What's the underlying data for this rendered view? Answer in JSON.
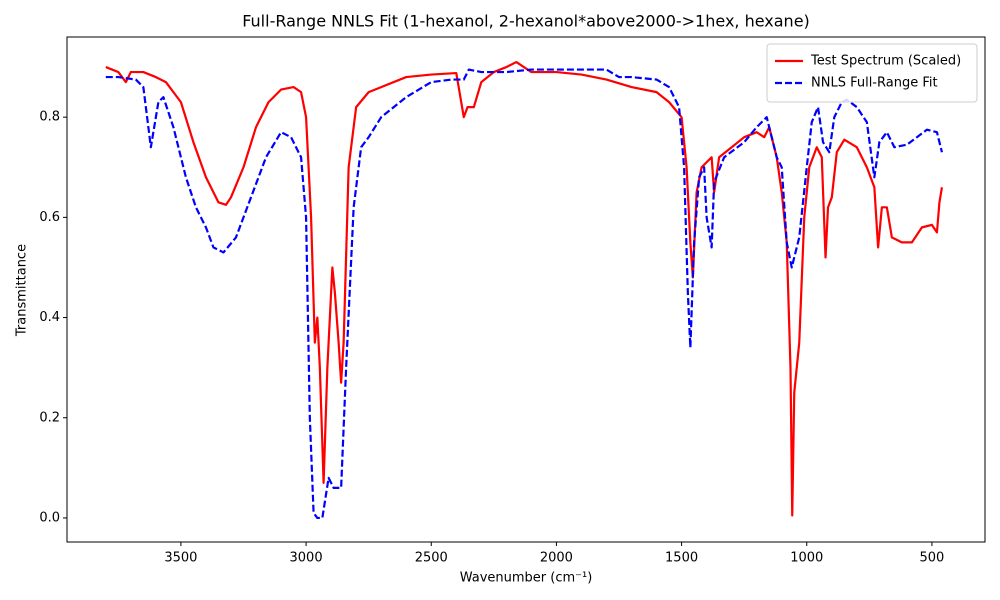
{
  "chart_data": {
    "type": "line",
    "title": "Full-Range NNLS Fit (1-hexanol, 2-hexanol*above2000->1hex, hexane)",
    "xlabel": "Wavenumber (cm⁻¹)",
    "ylabel": "Transmittance",
    "xlim": [
      3955,
      288
    ],
    "ylim": [
      -0.048,
      0.96
    ],
    "xticks": [
      3500,
      3000,
      2500,
      2000,
      1500,
      1000,
      500
    ],
    "yticks": [
      {
        "value": 0,
        "label": "0.0"
      },
      0.2,
      0.4,
      0.6,
      0.8
    ],
    "grid": false,
    "legend": "upper right",
    "series": [
      {
        "name": "Test Spectrum (Scaled)",
        "color": "#ff0000",
        "dash": "solid",
        "x": [
          3800,
          3750,
          3720,
          3700,
          3650,
          3600,
          3560,
          3500,
          3450,
          3400,
          3350,
          3320,
          3300,
          3250,
          3200,
          3150,
          3100,
          3050,
          3020,
          3000,
          2980,
          2965,
          2955,
          2945,
          2930,
          2915,
          2895,
          2885,
          2870,
          2860,
          2850,
          2830,
          2800,
          2750,
          2700,
          2600,
          2500,
          2400,
          2370,
          2355,
          2330,
          2300,
          2250,
          2200,
          2160,
          2100,
          2000,
          1900,
          1800,
          1700,
          1600,
          1550,
          1500,
          1480,
          1465,
          1455,
          1440,
          1420,
          1380,
          1370,
          1350,
          1300,
          1250,
          1200,
          1170,
          1150,
          1120,
          1100,
          1080,
          1065,
          1058,
          1050,
          1030,
          1010,
          990,
          960,
          940,
          925,
          915,
          900,
          880,
          850,
          800,
          760,
          730,
          715,
          700,
          680,
          660,
          620,
          580,
          540,
          500,
          480,
          470,
          460
        ],
        "values": [
          0.9,
          0.89,
          0.87,
          0.89,
          0.89,
          0.88,
          0.87,
          0.83,
          0.75,
          0.68,
          0.63,
          0.625,
          0.64,
          0.7,
          0.78,
          0.83,
          0.855,
          0.86,
          0.85,
          0.8,
          0.6,
          0.35,
          0.4,
          0.3,
          0.07,
          0.3,
          0.5,
          0.45,
          0.35,
          0.27,
          0.35,
          0.7,
          0.82,
          0.85,
          0.86,
          0.88,
          0.885,
          0.888,
          0.8,
          0.82,
          0.82,
          0.87,
          0.89,
          0.9,
          0.91,
          0.89,
          0.89,
          0.885,
          0.875,
          0.86,
          0.85,
          0.83,
          0.8,
          0.7,
          0.55,
          0.48,
          0.65,
          0.7,
          0.72,
          0.65,
          0.72,
          0.74,
          0.76,
          0.77,
          0.76,
          0.78,
          0.72,
          0.65,
          0.55,
          0.3,
          0.005,
          0.25,
          0.35,
          0.6,
          0.7,
          0.74,
          0.72,
          0.52,
          0.62,
          0.64,
          0.73,
          0.755,
          0.74,
          0.7,
          0.66,
          0.54,
          0.62,
          0.62,
          0.56,
          0.55,
          0.55,
          0.58,
          0.585,
          0.57,
          0.63,
          0.66
        ]
      },
      {
        "name": "NNLS Full-Range Fit",
        "color": "#0000ff",
        "dash": "dashed",
        "x": [
          3800,
          3750,
          3680,
          3650,
          3620,
          3590,
          3570,
          3530,
          3480,
          3440,
          3400,
          3370,
          3330,
          3280,
          3220,
          3160,
          3100,
          3060,
          3020,
          3000,
          2985,
          2970,
          2955,
          2935,
          2910,
          2890,
          2860,
          2840,
          2810,
          2780,
          2750,
          2700,
          2600,
          2500,
          2420,
          2370,
          2350,
          2300,
          2200,
          2100,
          2000,
          1900,
          1800,
          1750,
          1700,
          1600,
          1550,
          1510,
          1490,
          1475,
          1465,
          1450,
          1430,
          1410,
          1400,
          1380,
          1370,
          1330,
          1250,
          1200,
          1160,
          1120,
          1100,
          1080,
          1060,
          1030,
          1000,
          980,
          955,
          935,
          910,
          890,
          860,
          840,
          800,
          760,
          730,
          710,
          680,
          650,
          600,
          560,
          520,
          480,
          460
        ],
        "values": [
          0.88,
          0.88,
          0.875,
          0.86,
          0.74,
          0.83,
          0.84,
          0.78,
          0.68,
          0.62,
          0.58,
          0.54,
          0.53,
          0.56,
          0.64,
          0.72,
          0.77,
          0.76,
          0.72,
          0.6,
          0.2,
          0.01,
          0,
          0,
          0.08,
          0.06,
          0.06,
          0.3,
          0.62,
          0.74,
          0.76,
          0.8,
          0.84,
          0.87,
          0.875,
          0.875,
          0.895,
          0.89,
          0.89,
          0.895,
          0.895,
          0.895,
          0.895,
          0.88,
          0.88,
          0.875,
          0.86,
          0.82,
          0.7,
          0.45,
          0.34,
          0.55,
          0.68,
          0.7,
          0.6,
          0.54,
          0.67,
          0.72,
          0.75,
          0.78,
          0.8,
          0.72,
          0.7,
          0.55,
          0.5,
          0.56,
          0.7,
          0.79,
          0.82,
          0.75,
          0.73,
          0.8,
          0.83,
          0.835,
          0.82,
          0.79,
          0.68,
          0.75,
          0.77,
          0.74,
          0.745,
          0.76,
          0.775,
          0.77,
          0.73
        ]
      }
    ]
  }
}
